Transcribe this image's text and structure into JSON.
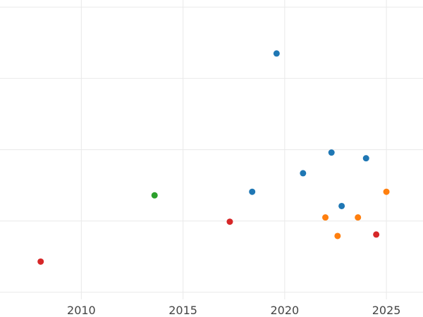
{
  "chart_data": {
    "type": "scatter",
    "title": "",
    "xlabel": "",
    "ylabel": "",
    "xlim": [
      2006,
      2026.8
    ],
    "ylim": [
      0,
      4.2
    ],
    "grid": true,
    "x_ticks": [
      2010,
      2015,
      2020,
      2025
    ],
    "x_tick_labels": [
      "2010",
      "2015",
      "2020",
      "2025"
    ],
    "y_gridlines": [
      0.1,
      1.1,
      2.1,
      3.1,
      4.1
    ],
    "colors": {
      "blue": "#1f77b4",
      "orange": "#ff7f0e",
      "green": "#2ca02c",
      "red": "#d62728"
    },
    "series": [
      {
        "color": "#1f77b4",
        "points": [
          {
            "x": 2019.6,
            "y": 3.45
          },
          {
            "x": 2022.3,
            "y": 2.06
          },
          {
            "x": 2024.0,
            "y": 1.98
          },
          {
            "x": 2020.9,
            "y": 1.77
          },
          {
            "x": 2018.4,
            "y": 1.51
          },
          {
            "x": 2022.8,
            "y": 1.31
          }
        ]
      },
      {
        "color": "#ff7f0e",
        "points": [
          {
            "x": 2025.0,
            "y": 1.51
          },
          {
            "x": 2022.0,
            "y": 1.15
          },
          {
            "x": 2023.6,
            "y": 1.15
          },
          {
            "x": 2022.6,
            "y": 0.89
          }
        ]
      },
      {
        "color": "#2ca02c",
        "points": [
          {
            "x": 2013.6,
            "y": 1.46
          }
        ]
      },
      {
        "color": "#d62728",
        "points": [
          {
            "x": 2017.3,
            "y": 1.09
          },
          {
            "x": 2024.5,
            "y": 0.91
          },
          {
            "x": 2008.0,
            "y": 0.53
          }
        ]
      }
    ]
  }
}
